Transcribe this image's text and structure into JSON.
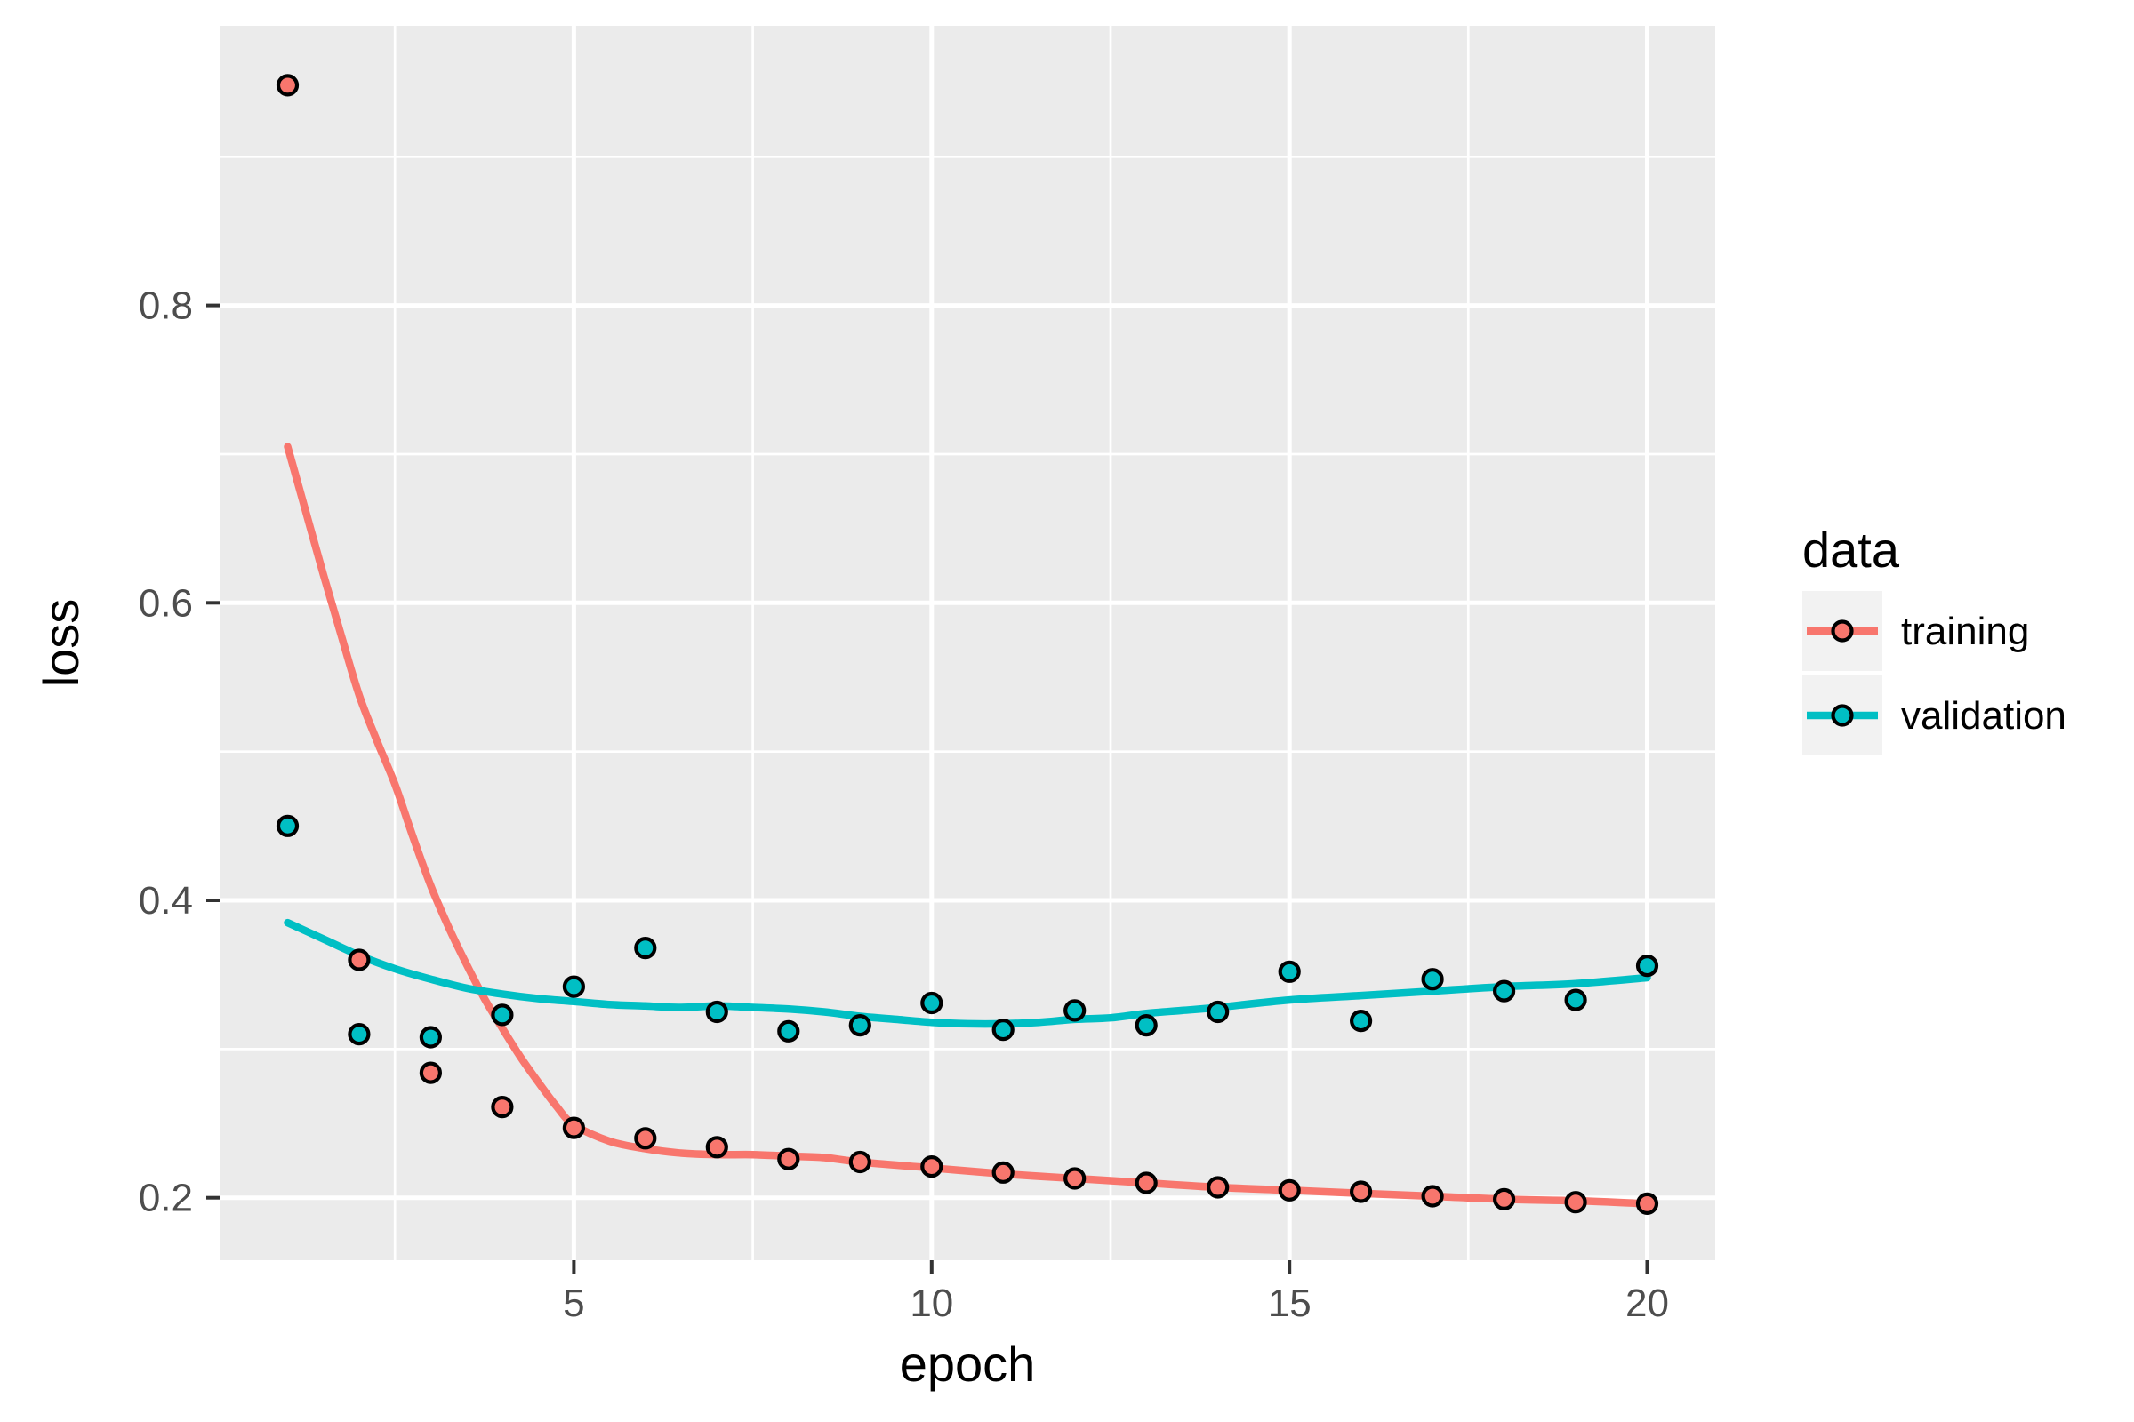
{
  "figure": {
    "background": "#FFFFFF"
  },
  "chart_data": {
    "type": "scatter",
    "title": "",
    "xlabel": "epoch",
    "ylabel": "loss",
    "xlim": [
      0.05,
      20.95
    ],
    "ylim": [
      0.158,
      0.988
    ],
    "grid": "on",
    "panel_fill": "#EBEBEB",
    "grid_color": "#FFFFFF",
    "tick_color": "#333333",
    "tick_label_color": "#4D4D4D",
    "axis_title_color": "#000000",
    "x_ticks": [
      5,
      10,
      15,
      20
    ],
    "x_tick_labels": [
      "5",
      "10",
      "15",
      "20"
    ],
    "x_minor_ticks": [
      2.5,
      7.5,
      12.5,
      17.5
    ],
    "y_ticks": [
      0.2,
      0.4,
      0.6,
      0.8
    ],
    "y_tick_labels": [
      "0.2",
      "0.4",
      "0.6",
      "0.8"
    ],
    "y_minor_ticks": [
      0.3,
      0.5,
      0.7,
      0.9
    ],
    "legend": {
      "title": "data",
      "position": "right",
      "key_fill": "#F2F2F2",
      "entries": [
        {
          "label": "training",
          "color": "#F8766D"
        },
        {
          "label": "validation",
          "color": "#00BFC4"
        }
      ]
    },
    "categories_note": "x = epoch number 1..20",
    "series": [
      {
        "name": "training",
        "color": "#F8766D",
        "x": [
          1,
          2,
          3,
          4,
          5,
          6,
          7,
          8,
          9,
          10,
          11,
          12,
          13,
          14,
          15,
          16,
          17,
          18,
          19,
          20
        ],
        "y": [
          0.948,
          0.36,
          0.284,
          0.261,
          0.247,
          0.24,
          0.234,
          0.226,
          0.224,
          0.221,
          0.217,
          0.213,
          0.21,
          0.207,
          0.205,
          0.204,
          0.201,
          0.199,
          0.197,
          0.196
        ],
        "smooth": {
          "x": [
            1,
            1.25,
            1.5,
            1.75,
            2,
            2.25,
            2.5,
            2.75,
            3,
            3.25,
            3.5,
            3.75,
            4,
            4.25,
            4.5,
            4.75,
            5,
            5.5,
            6,
            6.5,
            7,
            7.5,
            8,
            8.5,
            9,
            10,
            11,
            12,
            13,
            14,
            15,
            16,
            17,
            18,
            19,
            20
          ],
          "y": [
            0.705,
            0.662,
            0.619,
            0.578,
            0.538,
            0.507,
            0.478,
            0.443,
            0.41,
            0.382,
            0.357,
            0.334,
            0.314,
            0.295,
            0.278,
            0.262,
            0.249,
            0.238,
            0.233,
            0.23,
            0.229,
            0.229,
            0.228,
            0.227,
            0.224,
            0.22,
            0.216,
            0.213,
            0.21,
            0.207,
            0.205,
            0.203,
            0.201,
            0.199,
            0.198,
            0.196
          ]
        }
      },
      {
        "name": "validation",
        "color": "#00BFC4",
        "x": [
          1,
          2,
          3,
          4,
          5,
          6,
          7,
          8,
          9,
          10,
          11,
          12,
          13,
          14,
          15,
          16,
          17,
          18,
          19,
          20
        ],
        "y": [
          0.45,
          0.31,
          0.308,
          0.323,
          0.342,
          0.368,
          0.325,
          0.312,
          0.316,
          0.331,
          0.313,
          0.326,
          0.316,
          0.325,
          0.352,
          0.319,
          0.347,
          0.339,
          0.333,
          0.356
        ],
        "smooth": {
          "x": [
            1,
            1.5,
            2,
            2.5,
            3,
            3.5,
            4,
            4.5,
            5,
            5.5,
            6,
            6.5,
            7,
            7.5,
            8,
            8.5,
            9,
            9.5,
            10,
            10.5,
            11,
            11.5,
            12,
            12.5,
            13,
            13.5,
            14,
            15,
            16,
            17,
            18,
            19,
            20
          ],
          "y": [
            0.385,
            0.374,
            0.363,
            0.354,
            0.347,
            0.341,
            0.337,
            0.334,
            0.332,
            0.33,
            0.329,
            0.328,
            0.329,
            0.328,
            0.327,
            0.325,
            0.322,
            0.32,
            0.318,
            0.317,
            0.317,
            0.318,
            0.32,
            0.321,
            0.324,
            0.326,
            0.328,
            0.333,
            0.336,
            0.339,
            0.342,
            0.344,
            0.348
          ]
        }
      }
    ]
  }
}
